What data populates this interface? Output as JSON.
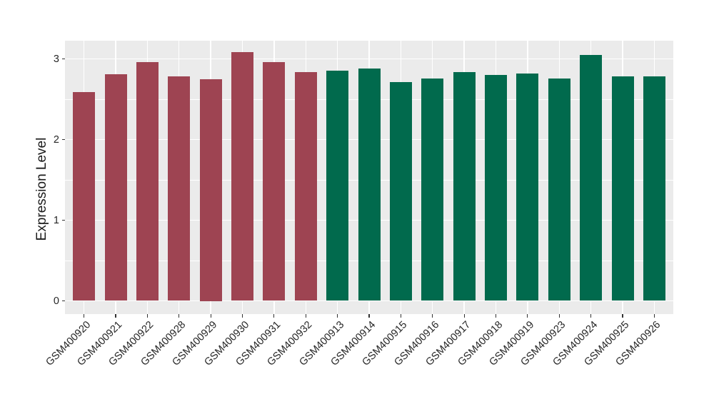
{
  "figure": {
    "background": "#FFFFFF",
    "panel_background": "#EBEBEB",
    "grid_color": "#FFFFFF",
    "tick_color": "#333333",
    "text_color": "#262626"
  },
  "chart_data": {
    "type": "bar",
    "title": "",
    "xlabel": "",
    "ylabel": "Expression Level",
    "categories": [
      "GSM400920",
      "GSM400921",
      "GSM400922",
      "GSM400928",
      "GSM400929",
      "GSM400930",
      "GSM400931",
      "GSM400932",
      "GSM400913",
      "GSM400914",
      "GSM400915",
      "GSM400916",
      "GSM400917",
      "GSM400918",
      "GSM400919",
      "GSM400923",
      "GSM400924",
      "GSM400925",
      "GSM400926"
    ],
    "values": [
      2.59,
      2.81,
      2.96,
      2.78,
      2.75,
      3.08,
      2.96,
      2.84,
      2.85,
      2.88,
      2.71,
      2.76,
      2.84,
      2.8,
      2.82,
      2.76,
      3.05,
      2.78,
      2.78
    ],
    "bar_colors": [
      "#9E4452",
      "#9E4452",
      "#9E4452",
      "#9E4452",
      "#9E4452",
      "#9E4452",
      "#9E4452",
      "#9E4452",
      "#016A4D",
      "#016A4D",
      "#016A4D",
      "#016A4D",
      "#016A4D",
      "#016A4D",
      "#016A4D",
      "#016A4D",
      "#016A4D",
      "#016A4D",
      "#016A4D"
    ],
    "groups": [
      {
        "color": "#9E4452",
        "categories": [
          "GSM400920",
          "GSM400921",
          "GSM400922",
          "GSM400928",
          "GSM400929",
          "GSM400930",
          "GSM400931",
          "GSM400932"
        ]
      },
      {
        "color": "#016A4D",
        "categories": [
          "GSM400913",
          "GSM400914",
          "GSM400915",
          "GSM400916",
          "GSM400917",
          "GSM400918",
          "GSM400919",
          "GSM400923",
          "GSM400924",
          "GSM400925",
          "GSM400926"
        ]
      }
    ],
    "yticks": [
      0,
      1,
      2,
      3
    ],
    "ytick_labels": [
      "0",
      "1",
      "2",
      "3"
    ],
    "yticks_minor": [
      0.5,
      1.5,
      2.5
    ],
    "ylim": [
      -0.16,
      3.23
    ],
    "grid": true,
    "legend_position": "none",
    "x_label_angle": 45
  }
}
